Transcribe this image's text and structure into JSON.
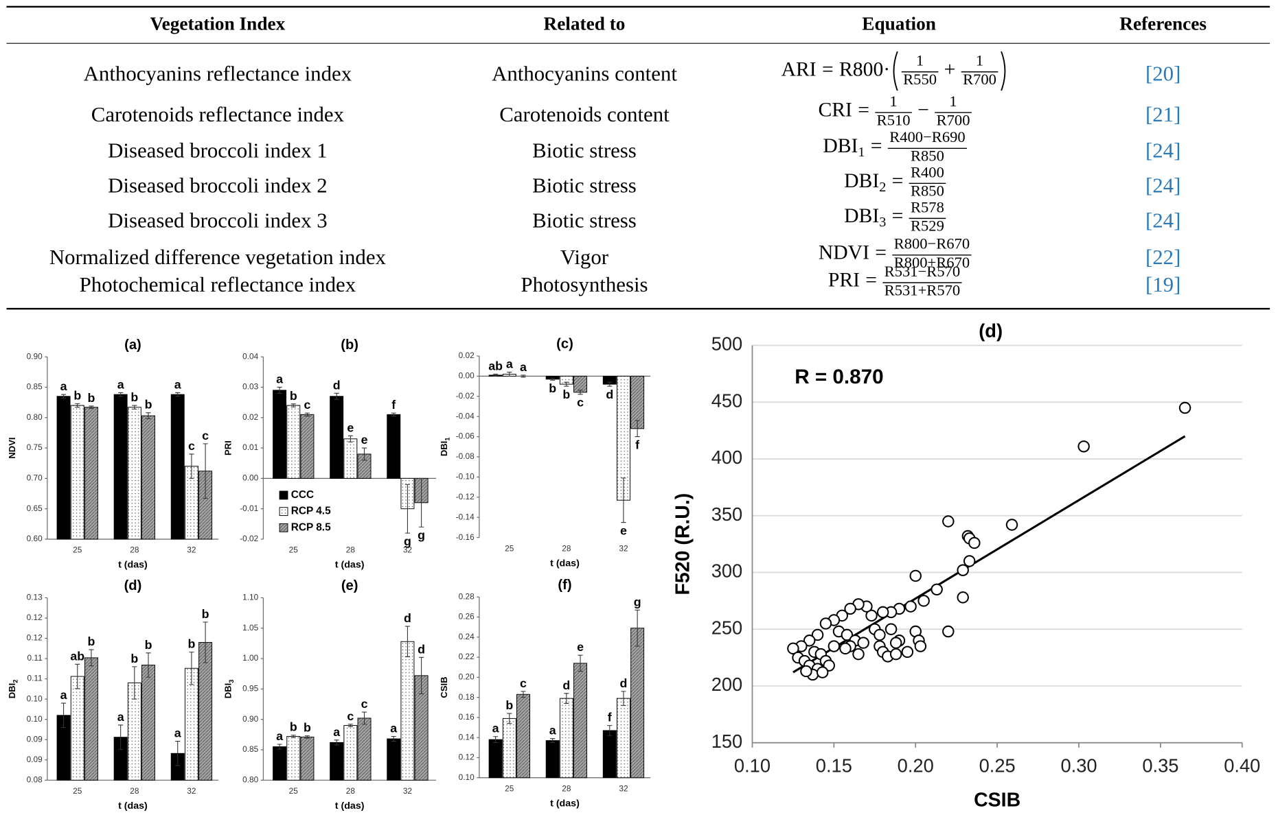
{
  "table": {
    "headers": [
      "Vegetation Index",
      "Related to",
      "Equation",
      "References"
    ],
    "rows": [
      {
        "index": "Anthocyanins reflectance index",
        "related": "Anthocyanins content",
        "equation": {
          "name": "ARI",
          "rel": "=",
          "prefix": "R800·",
          "paren": true,
          "fracs": [
            {
              "num": "1",
              "den": "R550"
            },
            {
              "num": "1",
              "den": "R700"
            }
          ],
          "ops": [
            "+"
          ]
        },
        "ref": "[20]"
      },
      {
        "index": "Carotenoids reflectance index",
        "related": "Carotenoids content",
        "equation": {
          "name": "CRI",
          "rel": "=",
          "fracs": [
            {
              "num": "1",
              "den": "R510"
            },
            {
              "num": "1",
              "den": "R700"
            }
          ],
          "ops": [
            "−"
          ]
        },
        "ref": "[21]"
      },
      {
        "index": "Diseased broccoli index 1",
        "related": "Biotic stress",
        "equation": {
          "name": "DBI",
          "sub": "1",
          "rel": "=",
          "fracs": [
            {
              "num": "R400−R690",
              "den": "R850"
            }
          ]
        },
        "ref": "[24]"
      },
      {
        "index": "Diseased broccoli index 2",
        "related": "Biotic stress",
        "equation": {
          "name": "DBI",
          "sub": "2",
          "rel": "=",
          "fracs": [
            {
              "num": "R400",
              "den": "R850"
            }
          ]
        },
        "ref": "[24]"
      },
      {
        "index": "Diseased broccoli index 3",
        "related": "Biotic stress",
        "equation": {
          "name": "DBI",
          "sub": "3",
          "rel": "=",
          "fracs": [
            {
              "num": "R578",
              "den": "R529"
            }
          ]
        },
        "ref": "[24]"
      },
      {
        "index": "Normalized difference vegetation index",
        "related": "Vigor",
        "equation": {
          "name": "NDVI",
          "rel": "=",
          "fracs": [
            {
              "num": "R800−R670",
              "den": "R800+R670"
            }
          ]
        },
        "ref": "[22]"
      },
      {
        "index": "Photochemical reflectance index",
        "related": "Photosynthesis",
        "equation": {
          "name": "PRI",
          "rel": "=",
          "fracs": [
            {
              "num": "R531−R570",
              "den": "R531+R570"
            }
          ]
        },
        "ref": "[19]"
      }
    ]
  },
  "chart_data": [
    {
      "type": "bar",
      "title": "(a)",
      "ylabel": "NDVI",
      "xlabel": "t (das)",
      "categories": [
        "25",
        "28",
        "32"
      ],
      "ylim": [
        0.6,
        0.9
      ],
      "yticks": [
        {
          "value": 0.6,
          "label": "0.60"
        },
        0.65,
        {
          "value": 0.7,
          "label": "0.70"
        },
        0.75,
        {
          "value": 0.8,
          "label": "0.80"
        },
        0.85,
        {
          "value": 0.9,
          "label": "0.90"
        }
      ],
      "series": [
        {
          "color": "#000000",
          "values": [
            0.835,
            0.838,
            0.838
          ],
          "errors": [
            0.003,
            0.003,
            0.003
          ],
          "letters": [
            "a",
            "a",
            "a"
          ]
        },
        {
          "color": "#ffffff",
          "pattern": "dots",
          "values": [
            0.82,
            0.817,
            0.72
          ],
          "errors": [
            0.003,
            0.003,
            0.02
          ],
          "letters": [
            "b",
            "b",
            "c"
          ]
        },
        {
          "color": "#a6a6a6",
          "pattern": "hatch",
          "values": [
            0.817,
            0.803,
            0.712
          ],
          "errors": [
            0.002,
            0.005,
            0.045
          ],
          "letters": [
            "b",
            "b",
            "c"
          ]
        }
      ]
    },
    {
      "type": "bar",
      "title": "(b)",
      "ylabel": "PRI",
      "xlabel": "t (das)",
      "categories": [
        "25",
        "28",
        "32"
      ],
      "legend": "lower left",
      "ylim": [
        -0.02,
        0.04
      ],
      "yticks": [
        -0.02,
        -0.01,
        {
          "value": 0,
          "label": "0.00"
        },
        0.01,
        0.02,
        0.03,
        0.04
      ],
      "series": [
        {
          "name": "CCC",
          "color": "#000000",
          "values": [
            0.029,
            0.027,
            0.021
          ],
          "errors": [
            0.001,
            0.001,
            0.0005
          ],
          "letters": [
            "a",
            "d",
            "f"
          ]
        },
        {
          "name": "RCP 4.5",
          "color": "#ffffff",
          "pattern": "dots",
          "values": [
            0.024,
            0.013,
            -0.01
          ],
          "errors": [
            0.0005,
            0.001,
            0.008
          ],
          "letters": [
            "b",
            "e",
            "g"
          ]
        },
        {
          "name": "RCP 8.5",
          "color": "#a6a6a6",
          "pattern": "hatch",
          "values": [
            0.021,
            0.008,
            -0.008
          ],
          "errors": [
            0.0005,
            0.002,
            0.008
          ],
          "letters": [
            "c",
            "e",
            "g"
          ]
        }
      ]
    },
    {
      "type": "bar",
      "title": "(c)",
      "ylabel": "DBI",
      "ylabel_sub": "1",
      "xlabel": "t (das)",
      "categories": [
        "25",
        "28",
        "32"
      ],
      "ylim": [
        -0.16,
        0.02
      ],
      "yticks": [
        -0.16,
        -0.14,
        -0.12,
        {
          "value": -0.1,
          "label": "-0.10"
        },
        -0.08,
        -0.06,
        -0.04,
        -0.02,
        {
          "value": 0,
          "label": "0.00"
        },
        0.02
      ],
      "series": [
        {
          "color": "#000000",
          "values": [
            0.001,
            -0.003,
            -0.008
          ],
          "errors": [
            0.001,
            0.001,
            0.002
          ],
          "letters": [
            "ab",
            "b",
            "d"
          ]
        },
        {
          "color": "#ffffff",
          "pattern": "dots",
          "values": [
            0.002,
            -0.008,
            -0.123
          ],
          "errors": [
            0.002,
            0.002,
            0.022
          ],
          "letters": [
            "a",
            "b",
            "e"
          ]
        },
        {
          "color": "#a6a6a6",
          "pattern": "hatch",
          "values": [
            0.0,
            -0.016,
            -0.052
          ],
          "errors": [
            0.001,
            0.002,
            0.008
          ],
          "letters": [
            "a",
            "c",
            "f"
          ]
        }
      ]
    },
    {
      "type": "bar",
      "title": "(d)",
      "ylabel": "DBI",
      "ylabel_sub": "2",
      "xlabel": "t (das)",
      "categories": [
        "25",
        "28",
        "32"
      ],
      "ylim": [
        0.08,
        0.125
      ],
      "yticks": [
        0.08,
        {
          "value": 0.085,
          "label": "0.09"
        },
        0.09,
        {
          "value": 0.095,
          "label": "0.10"
        },
        {
          "value": 0.1,
          "label": "0.10"
        },
        {
          "value": 0.105,
          "label": "0.11"
        },
        0.11,
        {
          "value": 0.115,
          "label": "0.12"
        },
        0.12,
        {
          "value": 0.125,
          "label": "0.13"
        }
      ],
      "series": [
        {
          "color": "#000000",
          "values": [
            0.096,
            0.0906,
            0.0866
          ],
          "errors": [
            0.003,
            0.003,
            0.003
          ],
          "letters": [
            "a",
            "a",
            "a"
          ]
        },
        {
          "color": "#ffffff",
          "pattern": "dots",
          "values": [
            0.1056,
            0.104,
            0.1076
          ],
          "errors": [
            0.003,
            0.004,
            0.004
          ],
          "letters": [
            "ab",
            "b",
            "b"
          ]
        },
        {
          "color": "#a6a6a6",
          "pattern": "hatch",
          "values": [
            0.1102,
            0.1084,
            0.114
          ],
          "errors": [
            0.002,
            0.003,
            0.005
          ],
          "letters": [
            "b",
            "b",
            "b"
          ]
        }
      ]
    },
    {
      "type": "bar",
      "title": "(e)",
      "ylabel": "DBI",
      "ylabel_sub": "3",
      "xlabel": "t (das)",
      "categories": [
        "25",
        "28",
        "32"
      ],
      "ylim": [
        0.8,
        1.1
      ],
      "yticks": [
        {
          "value": 0.8,
          "label": "0.80"
        },
        0.85,
        {
          "value": 0.9,
          "label": "0.90"
        },
        0.95,
        {
          "value": 1,
          "label": "1.00"
        },
        1.05,
        {
          "value": 1.1,
          "label": "1.10"
        }
      ],
      "series": [
        {
          "color": "#000000",
          "values": [
            0.855,
            0.862,
            0.868
          ],
          "errors": [
            0.004,
            0.004,
            0.004
          ],
          "letters": [
            "a",
            "a",
            "a"
          ]
        },
        {
          "color": "#ffffff",
          "pattern": "dots",
          "values": [
            0.872,
            0.89,
            1.028
          ],
          "errors": [
            0.002,
            0.002,
            0.025
          ],
          "letters": [
            "b",
            "c",
            "d"
          ]
        },
        {
          "color": "#a6a6a6",
          "pattern": "hatch",
          "values": [
            0.871,
            0.902,
            0.972
          ],
          "errors": [
            0.002,
            0.01,
            0.03
          ],
          "letters": [
            "b",
            "c",
            "d"
          ]
        }
      ]
    },
    {
      "type": "bar",
      "title": "(f)",
      "ylabel": "CSIB",
      "xlabel": "t (das)",
      "categories": [
        "25",
        "28",
        "32"
      ],
      "ylim": [
        0.1,
        0.28
      ],
      "yticks": [
        {
          "value": 0.1,
          "label": "0.10"
        },
        0.12,
        0.14,
        0.16,
        0.18,
        {
          "value": 0.2,
          "label": "0.20"
        },
        0.22,
        0.24,
        0.26,
        0.28
      ],
      "series": [
        {
          "color": "#000000",
          "values": [
            0.138,
            0.137,
            0.147
          ],
          "errors": [
            0.003,
            0.002,
            0.005
          ],
          "letters": [
            "a",
            "a",
            "f"
          ]
        },
        {
          "color": "#ffffff",
          "pattern": "dots",
          "values": [
            0.159,
            0.179,
            0.179
          ],
          "errors": [
            0.005,
            0.005,
            0.007
          ],
          "letters": [
            "b",
            "d",
            "d"
          ]
        },
        {
          "color": "#a6a6a6",
          "pattern": "hatch",
          "values": [
            0.183,
            0.214,
            0.249
          ],
          "errors": [
            0.003,
            0.008,
            0.018
          ],
          "letters": [
            "c",
            "e",
            "g"
          ]
        }
      ]
    },
    {
      "type": "scatter",
      "title": "(d)",
      "annotation": "R = 0.870",
      "xlabel": "CSIB",
      "ylabel": "F520 (R.U.)",
      "color": "#000000",
      "grid": true,
      "xlim": [
        0.1,
        0.4
      ],
      "xticks": [
        {
          "value": 0.1,
          "label": "0.10"
        },
        0.15,
        {
          "value": 0.2,
          "label": "0.20"
        },
        0.25,
        {
          "value": 0.3,
          "label": "0.30"
        },
        0.35,
        {
          "value": 0.4,
          "label": "0.40"
        }
      ],
      "ylim": [
        150,
        500
      ],
      "yticks": [
        150,
        200,
        250,
        300,
        350,
        400,
        450,
        500
      ],
      "x": [
        0.365,
        0.303,
        0.22,
        0.232,
        0.233,
        0.236,
        0.259,
        0.233,
        0.229,
        0.229,
        0.22,
        0.213,
        0.205,
        0.2,
        0.197,
        0.19,
        0.185,
        0.18,
        0.175,
        0.173,
        0.17,
        0.165,
        0.16,
        0.155,
        0.15,
        0.145,
        0.153,
        0.158,
        0.163,
        0.168,
        0.16,
        0.157,
        0.165,
        0.178,
        0.18,
        0.183,
        0.188,
        0.19,
        0.195,
        0.2,
        0.202,
        0.203,
        0.185,
        0.188,
        0.14,
        0.135,
        0.13,
        0.125,
        0.128,
        0.132,
        0.135,
        0.138,
        0.142,
        0.145,
        0.14,
        0.137,
        0.133,
        0.147,
        0.143,
        0.15,
        0.178
      ],
      "y": [
        445,
        411,
        345,
        332,
        330,
        326,
        342,
        310,
        302,
        278,
        248,
        285,
        275,
        297,
        270,
        268,
        265,
        265,
        250,
        262,
        270,
        272,
        268,
        262,
        258,
        255,
        248,
        245,
        240,
        238,
        235,
        233,
        228,
        235,
        230,
        226,
        228,
        240,
        230,
        248,
        240,
        235,
        250,
        238,
        245,
        240,
        235,
        233,
        225,
        222,
        218,
        230,
        228,
        222,
        215,
        210,
        213,
        218,
        212,
        235,
        245
      ],
      "fit_line": {
        "x": [
          0.125,
          0.365
        ],
        "y": [
          212,
          420
        ]
      }
    }
  ]
}
